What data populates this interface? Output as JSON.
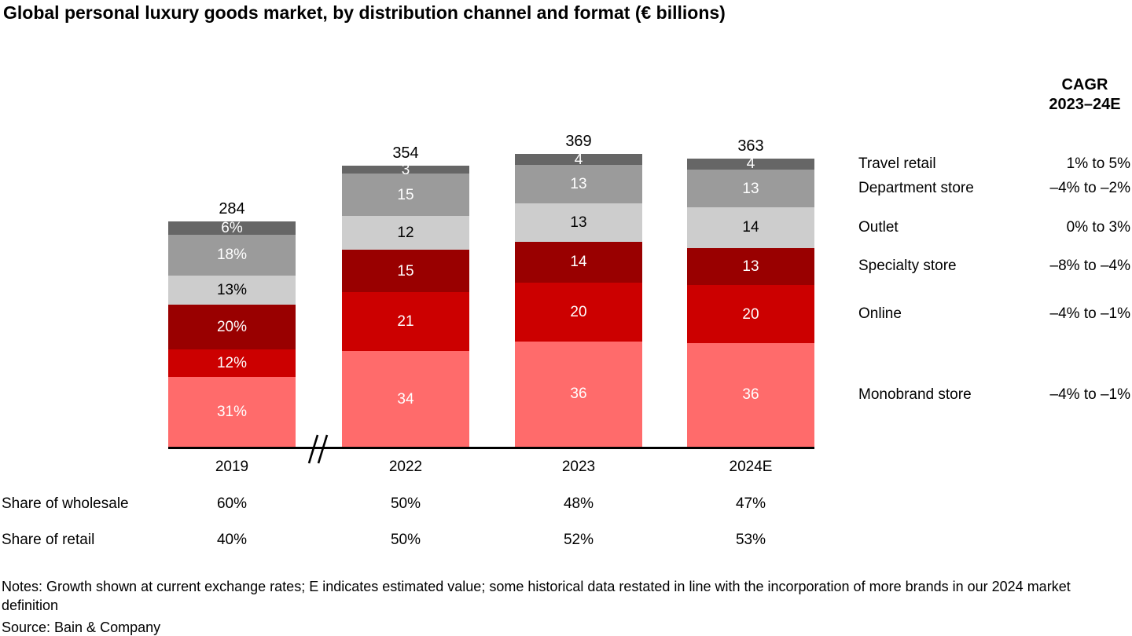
{
  "title": "Global personal luxury goods market, by distribution channel and format (€ billions)",
  "cagr_header": {
    "line1": "CAGR",
    "line2": "2023–24E"
  },
  "chart_data": {
    "type": "bar",
    "stacked": true,
    "unit": "€ billions",
    "title": "Global personal luxury goods market, by distribution channel and format (€ billions)",
    "categories": [
      "2019",
      "2022",
      "2023",
      "2024E"
    ],
    "totals": [
      284,
      354,
      369,
      363
    ],
    "axis_break_between": [
      "2019",
      "2022"
    ],
    "legend_position": "right",
    "series": [
      {
        "name": "Monobrand store",
        "color": "#ff6b6b",
        "label_color": "#ffffff",
        "values_pct": [
          31,
          34,
          36,
          36
        ],
        "labels": [
          "31%",
          "34",
          "36",
          "36"
        ],
        "cagr": "–4% to –1%"
      },
      {
        "name": "Online",
        "color": "#cc0000",
        "label_color": "#ffffff",
        "values_pct": [
          12,
          21,
          20,
          20
        ],
        "labels": [
          "12%",
          "21",
          "20",
          "20"
        ],
        "cagr": "–4% to –1%"
      },
      {
        "name": "Specialty store",
        "color": "#990000",
        "label_color": "#ffffff",
        "values_pct": [
          20,
          15,
          14,
          13
        ],
        "labels": [
          "20%",
          "15",
          "14",
          "13"
        ],
        "cagr": "–8% to –4%"
      },
      {
        "name": "Outlet",
        "color": "#cdcdcd",
        "label_color": "#000000",
        "values_pct": [
          13,
          12,
          13,
          14
        ],
        "labels": [
          "13%",
          "12",
          "13",
          "14"
        ],
        "cagr": "0% to 3%"
      },
      {
        "name": "Department store",
        "color": "#9b9b9b",
        "label_color": "#ffffff",
        "values_pct": [
          18,
          15,
          13,
          13
        ],
        "labels": [
          "18%",
          "15",
          "13",
          "13"
        ],
        "cagr": "–4% to –2%"
      },
      {
        "name": "Travel retail",
        "color": "#666666",
        "label_color": "#ffffff",
        "values_pct": [
          6,
          3,
          4,
          4
        ],
        "labels": [
          "6%",
          "3",
          "4",
          "4"
        ],
        "cagr": "1% to 5%"
      }
    ],
    "share_table": {
      "rows": [
        {
          "label": "Share of wholesale",
          "values": [
            "60%",
            "50%",
            "48%",
            "47%"
          ]
        },
        {
          "label": "Share of retail",
          "values": [
            "40%",
            "50%",
            "52%",
            "53%"
          ]
        }
      ]
    }
  },
  "notes": "Notes: Growth shown at current exchange rates; E indicates estimated value; some historical data restated in line with the incorporation of more brands in our 2024 market definition",
  "source": "Source: Bain & Company"
}
